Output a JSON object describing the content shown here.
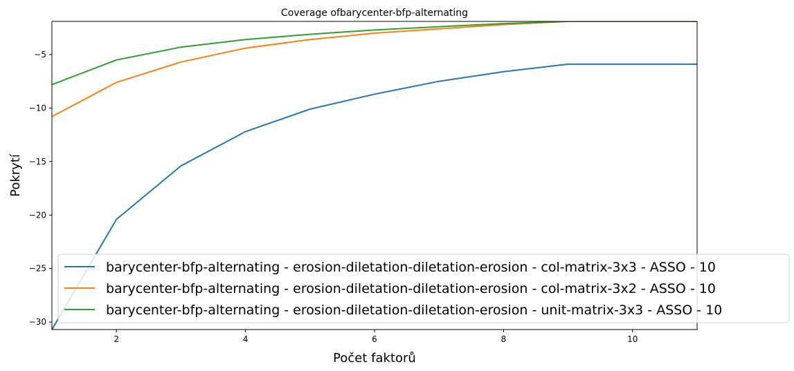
{
  "chart_data": {
    "type": "line",
    "title": "Coverage ofbarycenter-bfp-alternating",
    "xlabel": "Počet faktorů",
    "ylabel": "Pokrytí",
    "xlim": [
      1,
      11
    ],
    "ylim": [
      -30.7,
      -1.9
    ],
    "xticks": [
      2,
      4,
      6,
      8,
      10
    ],
    "yticks": [
      -30,
      -25,
      -20,
      -15,
      -10,
      -5
    ],
    "x": [
      1,
      2,
      3,
      4,
      5,
      6,
      7,
      8,
      9,
      10,
      11
    ],
    "grid": false,
    "legend_position": "lower-right",
    "series": [
      {
        "name": "barycenter-bfp-alternating - erosion-diletation-diletation-erosion - col-matrix-3x3 - ASSO - 10",
        "color": "#1f77b4",
        "values": [
          -30.7,
          -20.4,
          -15.4,
          -12.2,
          -10.1,
          -8.7,
          -7.5,
          -6.6,
          -5.9,
          -5.9,
          -5.9
        ]
      },
      {
        "name": "barycenter-bfp-alternating - erosion-diletation-diletation-erosion - col-matrix-3x2 - ASSO - 10",
        "color": "#ff7f0e",
        "values": [
          -10.8,
          -7.6,
          -5.7,
          -4.4,
          -3.6,
          -3.0,
          -2.6,
          -2.2,
          -1.9,
          -1.9,
          -1.9
        ]
      },
      {
        "name": "barycenter-bfp-alternating - erosion-diletation-diletation-erosion - unit-matrix-3x3 - ASSO - 10",
        "color": "#2ca02c",
        "values": [
          -7.8,
          -5.5,
          -4.3,
          -3.6,
          -3.1,
          -2.7,
          -2.4,
          -2.1,
          -1.9,
          -1.9,
          -1.9
        ]
      }
    ]
  }
}
